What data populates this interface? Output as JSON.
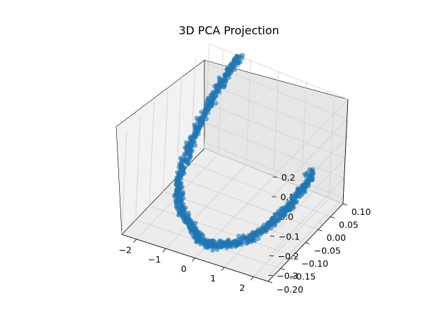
{
  "chart_data": {
    "type": "scatter",
    "title": "3D PCA Projection",
    "xlabel": "",
    "ylabel": "",
    "zlabel": "",
    "xlim": [
      -2.5,
      2.5
    ],
    "ylim": [
      -0.2,
      0.1
    ],
    "zlim": [
      -0.33,
      0.2
    ],
    "x_ticks": [
      -2,
      -1,
      0,
      1,
      2
    ],
    "y_ticks": [
      -0.2,
      -0.15,
      -0.1,
      -0.05,
      0.0,
      0.05,
      0.1
    ],
    "z_ticks": [
      -0.3,
      -0.2,
      -0.1,
      0.0,
      0.1,
      0.2
    ],
    "x_tick_labels": [
      "−2",
      "−1",
      "0",
      "1",
      "2"
    ],
    "y_tick_labels": [
      "−0.20",
      "−0.15",
      "−0.10",
      "−0.05",
      "0.00",
      "0.05",
      "0.10"
    ],
    "z_tick_labels": [
      "−0.3",
      "−0.2",
      "−0.1",
      "0.0",
      "0.1",
      "0.2"
    ],
    "grid": true,
    "marker_color": "#1f77b4",
    "marker_alpha": 0.6,
    "series": [
      {
        "values": [
          {
            "x": -1.4,
            "y": 0.1,
            "z": 0.2
          },
          {
            "x": -1.55,
            "y": 0.08,
            "z": 0.15
          },
          {
            "x": -1.7,
            "y": 0.06,
            "z": 0.09
          },
          {
            "x": -1.8,
            "y": 0.04,
            "z": 0.03
          },
          {
            "x": -1.9,
            "y": 0.02,
            "z": -0.03
          },
          {
            "x": -1.95,
            "y": 0.0,
            "z": -0.09
          },
          {
            "x": -2.0,
            "y": -0.02,
            "z": -0.15
          },
          {
            "x": -2.0,
            "y": -0.04,
            "z": -0.2
          },
          {
            "x": -1.9,
            "y": -0.06,
            "z": -0.24
          },
          {
            "x": -1.7,
            "y": -0.08,
            "z": -0.27
          },
          {
            "x": -1.4,
            "y": -0.1,
            "z": -0.29
          },
          {
            "x": -1.0,
            "y": -0.12,
            "z": -0.3
          },
          {
            "x": -0.6,
            "y": -0.14,
            "z": -0.3
          },
          {
            "x": -0.2,
            "y": -0.16,
            "z": -0.3
          },
          {
            "x": 0.2,
            "y": -0.17,
            "z": -0.29
          },
          {
            "x": 0.6,
            "y": -0.17,
            "z": -0.28
          },
          {
            "x": 1.0,
            "y": -0.16,
            "z": -0.26
          },
          {
            "x": 1.4,
            "y": -0.15,
            "z": -0.23
          },
          {
            "x": 1.7,
            "y": -0.13,
            "z": -0.2
          },
          {
            "x": 1.95,
            "y": -0.11,
            "z": -0.16
          },
          {
            "x": 2.15,
            "y": -0.09,
            "z": -0.12
          },
          {
            "x": 2.3,
            "y": -0.07,
            "z": -0.08
          },
          {
            "x": 2.4,
            "y": -0.05,
            "z": -0.04
          },
          {
            "x": 2.45,
            "y": -0.03,
            "z": 0.0
          }
        ]
      }
    ]
  }
}
